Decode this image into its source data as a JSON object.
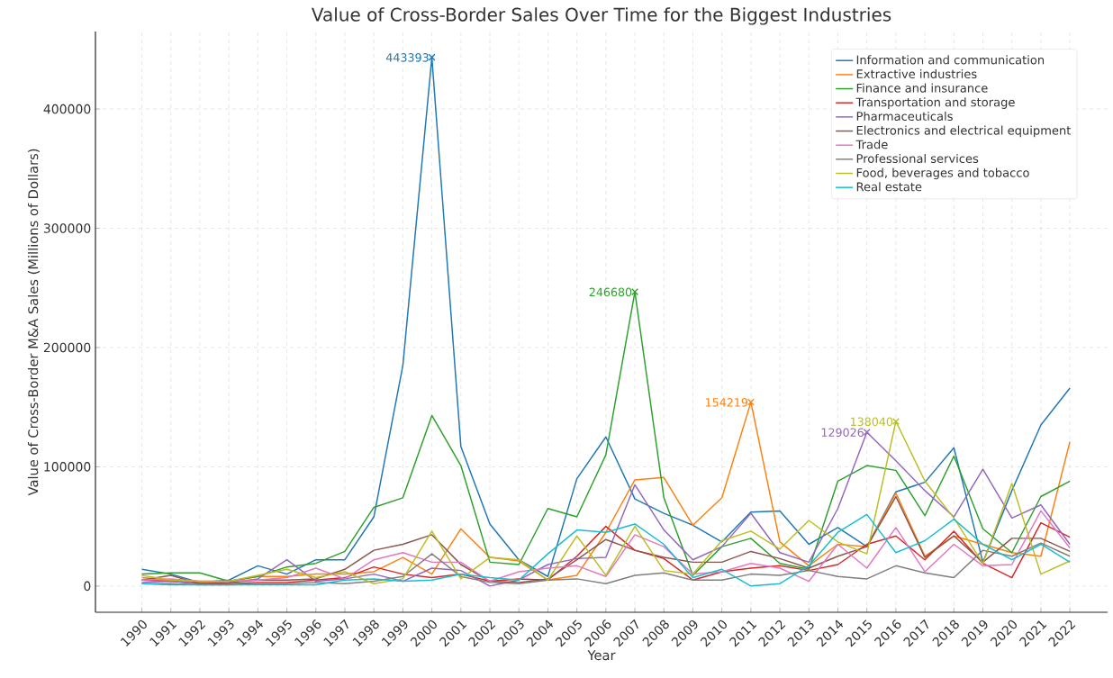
{
  "chart_data": {
    "type": "line",
    "title": "Value of Cross-Border Sales Over Time for the Biggest Industries",
    "xlabel": "Year",
    "ylabel": "Value of Cross-Border M&A Sales (Millions of Dollars)",
    "x": [
      1990,
      1991,
      1992,
      1993,
      1994,
      1995,
      1996,
      1997,
      1998,
      1999,
      2000,
      2001,
      2002,
      2003,
      2004,
      2005,
      2006,
      2007,
      2008,
      2009,
      2010,
      2011,
      2012,
      2013,
      2014,
      2015,
      2016,
      2017,
      2018,
      2019,
      2020,
      2021,
      2022
    ],
    "xlim": [
      1988.4,
      2023.3
    ],
    "xticks": [
      1990,
      1991,
      1992,
      1993,
      1994,
      1995,
      1996,
      1997,
      1998,
      1999,
      2000,
      2001,
      2002,
      2003,
      2004,
      2005,
      2006,
      2007,
      2008,
      2009,
      2010,
      2011,
      2012,
      2013,
      2014,
      2015,
      2016,
      2017,
      2018,
      2019,
      2020,
      2021,
      2022
    ],
    "ylim": [
      -22000,
      465000
    ],
    "yticks": [
      0,
      100000,
      200000,
      300000,
      400000
    ],
    "grid": true,
    "legend": "top right",
    "series": [
      {
        "name": "Information and communication",
        "color": "#1f77b4",
        "values": [
          14000,
          10000,
          3000,
          5000,
          17000,
          10000,
          22000,
          22000,
          58000,
          185000,
          443393,
          117000,
          52000,
          22000,
          8000,
          90000,
          125000,
          73000,
          61000,
          51000,
          37000,
          62000,
          63000,
          35000,
          49000,
          33000,
          79000,
          87000,
          116000,
          20000,
          80000,
          135000,
          166000
        ]
      },
      {
        "name": "Extractive industries",
        "color": "#ff7f0e",
        "values": [
          7000,
          5000,
          3000,
          4000,
          8000,
          8000,
          10000,
          10000,
          12000,
          24000,
          10000,
          48000,
          24000,
          21000,
          5000,
          9000,
          45000,
          89000,
          91000,
          51000,
          74000,
          154219,
          37000,
          17000,
          35000,
          33000,
          78000,
          25000,
          42000,
          35000,
          28000,
          25000,
          121000
        ]
      },
      {
        "name": "Finance and insurance",
        "color": "#2ca02c",
        "values": [
          10000,
          11000,
          11000,
          4000,
          8000,
          16000,
          19000,
          29000,
          66000,
          74000,
          143000,
          101000,
          20000,
          18000,
          65000,
          58000,
          110000,
          246680,
          74000,
          9000,
          33000,
          40000,
          19000,
          14000,
          88000,
          101000,
          97000,
          59000,
          109000,
          48000,
          28000,
          75000,
          88000
        ]
      },
      {
        "name": "Transportation and storage",
        "color": "#d62728",
        "values": [
          5000,
          4000,
          2000,
          2000,
          3000,
          3000,
          5000,
          7000,
          16000,
          10000,
          7000,
          10000,
          4000,
          6000,
          5000,
          25000,
          50000,
          30000,
          23000,
          5000,
          12000,
          15000,
          17000,
          13000,
          18000,
          35000,
          42000,
          22000,
          46000,
          19000,
          7000,
          53000,
          41000
        ]
      },
      {
        "name": "Pharmaceuticals",
        "color": "#9467bd",
        "values": [
          3000,
          4000,
          2000,
          3000,
          6000,
          22000,
          4000,
          6000,
          10000,
          4000,
          15000,
          13000,
          0,
          5000,
          18000,
          23000,
          24000,
          85000,
          47000,
          22000,
          33000,
          61000,
          28000,
          20000,
          65000,
          129026,
          105000,
          80000,
          58000,
          98000,
          57000,
          68000,
          35000
        ]
      },
      {
        "name": "Electronics and electrical equipment",
        "color": "#8c564b",
        "values": [
          5000,
          9000,
          2000,
          3000,
          5000,
          5000,
          6000,
          14000,
          30000,
          35000,
          43000,
          18000,
          4000,
          3000,
          6000,
          22000,
          39000,
          30000,
          24000,
          20000,
          20000,
          29000,
          23000,
          15000,
          25000,
          33000,
          75000,
          24000,
          42000,
          20000,
          40000,
          40000,
          29000
        ]
      },
      {
        "name": "Trade",
        "color": "#e377c2",
        "values": [
          5000,
          6000,
          4000,
          4000,
          5000,
          7000,
          15000,
          6000,
          22000,
          28000,
          20000,
          20000,
          4000,
          12000,
          15000,
          17000,
          8000,
          43000,
          33000,
          10000,
          12000,
          19000,
          15000,
          4000,
          35000,
          15000,
          49000,
          12000,
          35000,
          17000,
          18000,
          63000,
          32000
        ]
      },
      {
        "name": "Professional services",
        "color": "#7f7f7f",
        "values": [
          2000,
          2000,
          1000,
          1000,
          2000,
          2000,
          3000,
          2000,
          4000,
          8000,
          27000,
          8000,
          3000,
          2000,
          5000,
          6000,
          2000,
          9000,
          11000,
          5000,
          5000,
          10000,
          9000,
          13000,
          8000,
          6000,
          17000,
          11000,
          7000,
          30000,
          25000,
          36000,
          25000
        ]
      },
      {
        "name": "Food, beverages and tobacco",
        "color": "#bcbd22",
        "values": [
          9000,
          5000,
          4000,
          4000,
          9000,
          14000,
          7000,
          12000,
          2000,
          6000,
          46000,
          6000,
          24000,
          22000,
          5000,
          42000,
          9000,
          50000,
          13000,
          10000,
          38000,
          46000,
          31000,
          55000,
          37000,
          27000,
          138040,
          88000,
          57000,
          19000,
          86000,
          10000,
          21000
        ]
      },
      {
        "name": "Real estate",
        "color": "#17becf",
        "values": [
          2000,
          1000,
          1000,
          1000,
          1000,
          1000,
          1000,
          5000,
          6000,
          4000,
          5000,
          10000,
          7000,
          5000,
          27000,
          47000,
          45000,
          52000,
          35000,
          7000,
          14000,
          0,
          2000,
          17000,
          45000,
          60000,
          28000,
          38000,
          56000,
          35000,
          22000,
          35000,
          20000
        ]
      }
    ],
    "annotations": [
      {
        "text": "443393",
        "x": 2000,
        "y": 443393
      },
      {
        "text": "246680",
        "x": 2007,
        "y": 246680
      },
      {
        "text": "154219",
        "x": 2011,
        "y": 154219
      },
      {
        "text": "129026",
        "x": 2015,
        "y": 129026
      },
      {
        "text": "138040",
        "x": 2016,
        "y": 138040
      }
    ]
  }
}
